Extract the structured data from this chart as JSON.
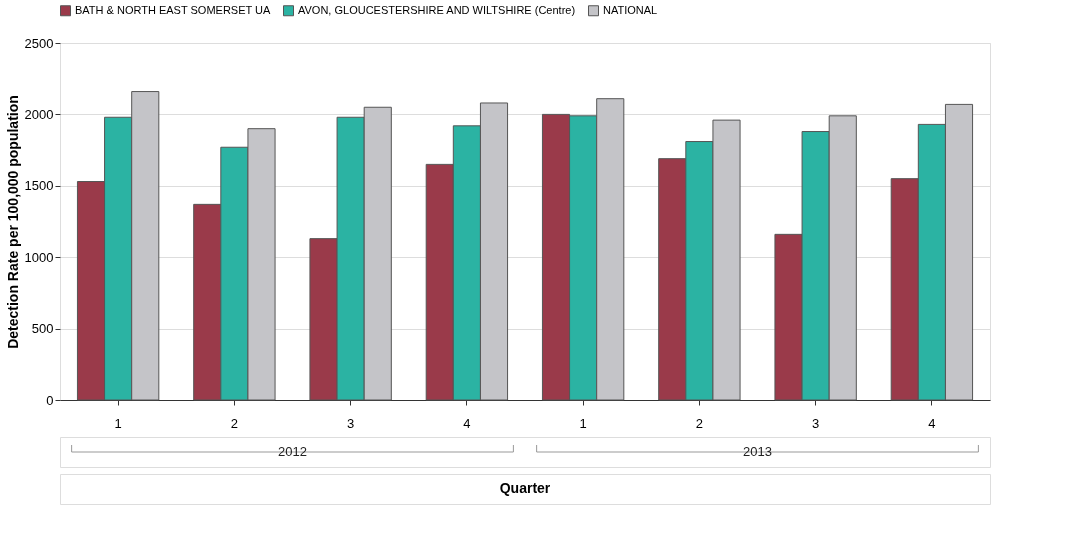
{
  "chart_data": {
    "type": "bar",
    "xlabel": "Quarter",
    "ylabel": "Detection Rate per 100,000 population",
    "categories": [
      "1",
      "2",
      "3",
      "4",
      "1",
      "2",
      "3",
      "4"
    ],
    "series": [
      {
        "name": "BATH & NORTH EAST SOMERSET UA",
        "color": "#9a3a4a",
        "values": [
          1530,
          1370,
          1130,
          1650,
          2000,
          1690,
          1160,
          1550
        ]
      },
      {
        "name": "AVON, GLOUCESTERSHIRE AND WILTSHIRE (Centre)",
        "color": "#2bb3a3",
        "values": [
          1980,
          1770,
          1980,
          1920,
          1990,
          1810,
          1880,
          1930
        ]
      },
      {
        "name": "NATIONAL",
        "color": "#c4c4c8",
        "values": [
          2160,
          1900,
          2050,
          2080,
          2110,
          1960,
          1990,
          2070
        ]
      }
    ],
    "annotations": [
      "2012",
      "2013"
    ],
    "ylim": [
      0,
      2500
    ],
    "yticks": [
      0,
      500,
      1000,
      1500,
      2000,
      2500
    ],
    "grid": "y",
    "legend": "top left"
  }
}
